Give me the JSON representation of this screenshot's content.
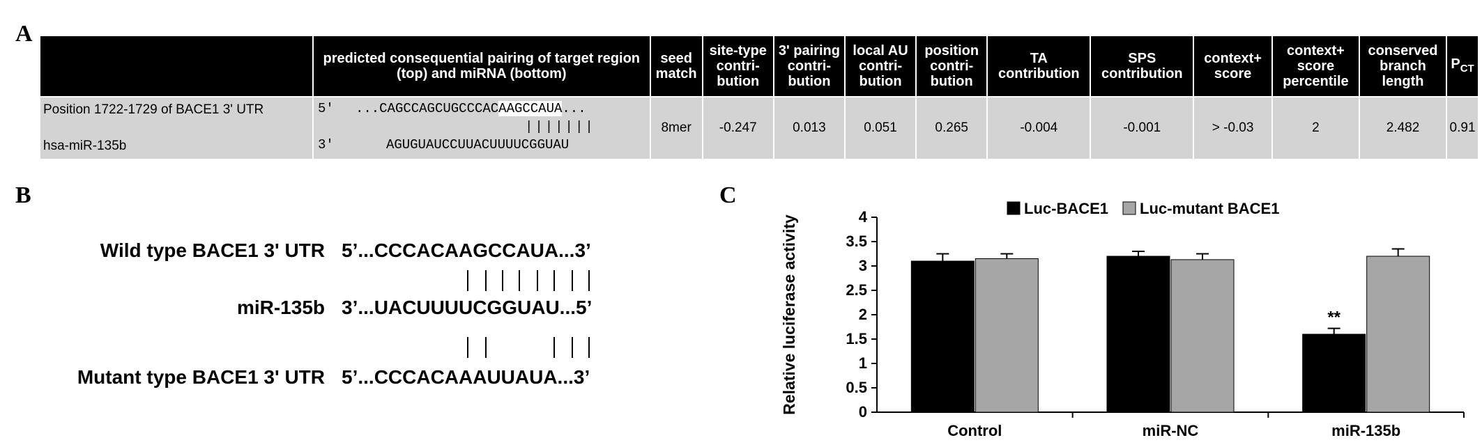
{
  "panel_labels": {
    "a": "A",
    "b": "B",
    "c": "C"
  },
  "table": {
    "headers": [
      "",
      "predicted consequential pairing of target region (top) and miRNA (bottom)",
      "seed match",
      "site-type contri-bution",
      "3' pairing contri-bution",
      "local AU contri-bution",
      "position contri-bution",
      "TA contribution",
      "SPS contribution",
      "context+ score",
      "context+ score percentile",
      "conserved branch length",
      "P",
      "CT"
    ],
    "row": {
      "position_label": "Position 1722-1729 of BACE1 3' UTR",
      "mirna_label": "hsa-miR-135b",
      "top_prime": "5'",
      "top_seq_a": "...CAGCCAGCUGCCCAC",
      "top_seq_hl": "AAGCCAUA",
      "top_seq_b": "...",
      "pair_bars": "|||||||",
      "bottom_prime": "3'",
      "bottom_seq": "AGUGUAUCCUUACUUUUCGGUAU",
      "seed_match": "8mer",
      "site_type": "-0.247",
      "three_pairing": "0.013",
      "local_au": "0.051",
      "position": "0.265",
      "ta": "-0.004",
      "sps": "-0.001",
      "context_score": "> -0.03",
      "context_percentile": "2",
      "branch_length": "2.482",
      "pct": "0.91"
    }
  },
  "panel_b": {
    "wild_label": "Wild type BACE1 3' UTR",
    "wild_seq": "5’...CCCACAAGCCAUA...3’",
    "mir_label": "miR-135b",
    "mir_seq": "3’...UACUUUUCGGUAU...5’",
    "mutant_label": "Mutant type BACE1 3' UTR",
    "mutant_seq": "5’...CCCACAAAUUAUA...3’"
  },
  "chart_data": {
    "type": "bar",
    "categories": [
      "Control",
      "miR-NC",
      "miR-135b"
    ],
    "series": [
      {
        "name": "Luc-BACE1",
        "values": [
          3.1,
          3.2,
          1.6
        ],
        "errors": [
          0.15,
          0.1,
          0.12
        ],
        "color": "#000000"
      },
      {
        "name": "Luc-mutant BACE1",
        "values": [
          3.15,
          3.13,
          3.2
        ],
        "errors": [
          0.1,
          0.12,
          0.15
        ],
        "color": "#a6a6a6"
      }
    ],
    "ylabel": "Relative luciferase activity",
    "ylim": [
      0,
      4
    ],
    "yticks": [
      "0",
      "0.5",
      "1",
      "1.5",
      "2",
      "2.5",
      "3",
      "3.5",
      "4"
    ],
    "annotations": [
      {
        "category": "miR-135b",
        "series": "Luc-BACE1",
        "text": "**"
      }
    ],
    "legend_position": "top"
  }
}
